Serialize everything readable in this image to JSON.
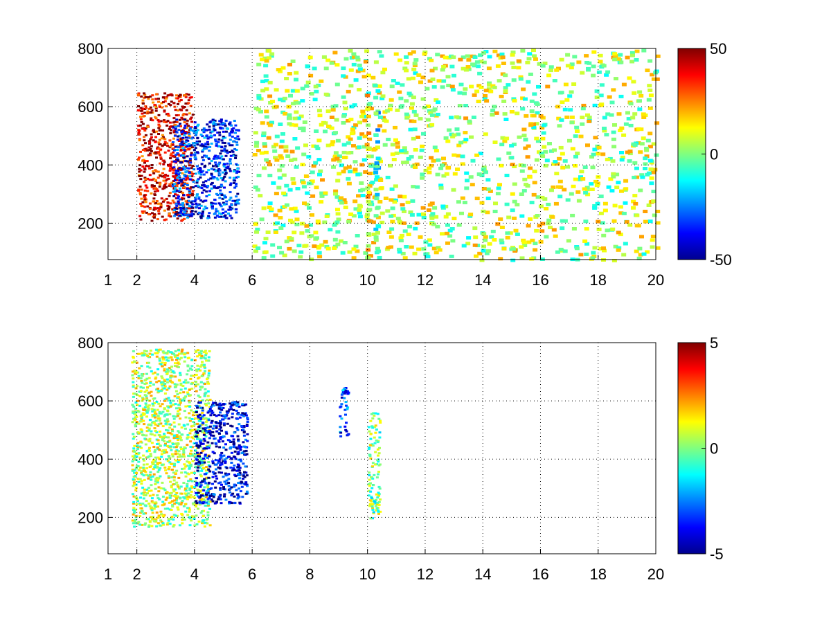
{
  "chart_data": [
    {
      "type": "heatmap",
      "title": "",
      "xlabel": "",
      "ylabel": "",
      "xlim": [
        1,
        20
      ],
      "ylim": [
        75,
        800
      ],
      "xticks": [
        1,
        2,
        4,
        6,
        8,
        10,
        12,
        14,
        16,
        18,
        20
      ],
      "yticks": [
        200,
        400,
        600,
        800
      ],
      "grid": true,
      "colormap": "jet",
      "clim": [
        -50,
        50
      ],
      "colorbar_ticks": [
        -50,
        0,
        50
      ],
      "regions": [
        {
          "feature": "positive band",
          "x": [
            2.0,
            3.9
          ],
          "y": [
            210,
            650
          ],
          "value": 40
        },
        {
          "feature": "negative band",
          "x": [
            3.2,
            5.5
          ],
          "y": [
            220,
            560
          ],
          "value": -35
        },
        {
          "feature": "sparse noise",
          "x": [
            6,
            20
          ],
          "y": [
            75,
            800
          ],
          "value": 5
        },
        {
          "feature": "vertical streak",
          "x": [
            9.9,
            10.0
          ],
          "y": [
            75,
            650
          ],
          "value": 12
        },
        {
          "feature": "vertical streak",
          "x": [
            10.2,
            10.3
          ],
          "y": [
            100,
            600
          ],
          "value": -10
        }
      ]
    },
    {
      "type": "heatmap",
      "title": "",
      "xlabel": "",
      "ylabel": "",
      "xlim": [
        1,
        20
      ],
      "ylim": [
        75,
        800
      ],
      "xticks": [
        1,
        2,
        4,
        6,
        8,
        10,
        12,
        14,
        16,
        18,
        20
      ],
      "yticks": [
        200,
        400,
        600,
        800
      ],
      "grid": true,
      "colormap": "jet",
      "clim": [
        -5,
        5
      ],
      "colorbar_ticks": [
        -5,
        0,
        5
      ],
      "regions": [
        {
          "feature": "main cluster",
          "x": [
            1.8,
            4.5
          ],
          "y": [
            170,
            780
          ],
          "value": 0.5
        },
        {
          "feature": "negative patch",
          "x": [
            4.0,
            5.8
          ],
          "y": [
            250,
            600
          ],
          "value": -4
        },
        {
          "feature": "small patch",
          "x": [
            9.0,
            9.3
          ],
          "y": [
            480,
            650
          ],
          "value": -3
        },
        {
          "feature": "small patch",
          "x": [
            10.0,
            10.4
          ],
          "y": [
            200,
            570
          ],
          "value": 0
        }
      ]
    }
  ]
}
